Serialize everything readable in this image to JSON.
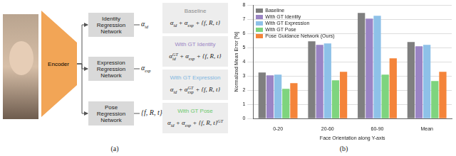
{
  "diagram": {
    "caption": "(a)",
    "encoder": "Encoder",
    "networks": [
      {
        "label": "Identity Regression Network",
        "output": [
          {
            "t": "α",
            "sub": "id"
          }
        ]
      },
      {
        "label": "Expression Regression Network",
        "output": [
          {
            "t": "α",
            "sub": "exp"
          }
        ]
      },
      {
        "label": "Pose Regression Network",
        "output": [
          {
            "t": "{f, R, t}"
          }
        ]
      }
    ],
    "variants": [
      {
        "title": "Baseline",
        "color": "#8c8c8c",
        "formula": [
          {
            "t": "α",
            "sub": "id"
          },
          {
            "t": " + "
          },
          {
            "t": "α",
            "sub": "exp"
          },
          {
            "t": " + "
          },
          {
            "t": "{f, R, t}"
          }
        ]
      },
      {
        "title": "With GT Identity",
        "color": "#9a84c4",
        "formula": [
          {
            "t": "α",
            "sub": "id",
            "sup": "GT"
          },
          {
            "t": " + "
          },
          {
            "t": "α",
            "sub": "exp"
          },
          {
            "t": " + "
          },
          {
            "t": "{f, R, t}"
          }
        ]
      },
      {
        "title": "With GT Expression",
        "color": "#7fb6e0",
        "formula": [
          {
            "t": "α",
            "sub": "id"
          },
          {
            "t": " + "
          },
          {
            "t": "α",
            "sub": "exp",
            "sup": "GT"
          },
          {
            "t": " + "
          },
          {
            "t": "{f, R, t}"
          }
        ]
      },
      {
        "title": "With GT Pose",
        "color": "#6cc96c",
        "formula": [
          {
            "t": "α",
            "sub": "id"
          },
          {
            "t": " + "
          },
          {
            "t": "α",
            "sub": "exp"
          },
          {
            "t": " + "
          },
          {
            "t": "{f, R, t}",
            "sup": "GT"
          }
        ]
      }
    ]
  },
  "chart_data": {
    "type": "bar",
    "x_label": "Face Orientation along Y-axis",
    "y_label": "Normalized Mean Error [%]",
    "annotations": [
      "(b)"
    ],
    "categories": [
      "0-20",
      "20-60",
      "60-90",
      "Mean"
    ],
    "series": [
      {
        "name": "Baseline",
        "color": "#7f7f7f",
        "values": [
          3.25,
          5.45,
          7.45,
          5.4
        ]
      },
      {
        "name": "With GT Identity",
        "color": "#9a84c4",
        "values": [
          3.05,
          5.2,
          7.05,
          5.1
        ]
      },
      {
        "name": "With GT Expression",
        "color": "#8ec1e8",
        "values": [
          3.1,
          5.3,
          7.25,
          5.2
        ]
      },
      {
        "name": "With GT Pose",
        "color": "#7ed47e",
        "values": [
          2.1,
          2.7,
          3.1,
          2.65
        ]
      },
      {
        "name": "Pose Guidance Network (Ours)",
        "color": "#f4843a",
        "values": [
          2.5,
          3.3,
          4.25,
          3.3
        ]
      }
    ],
    "ylim": [
      0,
      8
    ],
    "yticks": [
      0,
      1,
      2,
      3,
      4,
      5,
      6,
      7,
      8
    ],
    "grid": true,
    "legend": "upper left"
  }
}
